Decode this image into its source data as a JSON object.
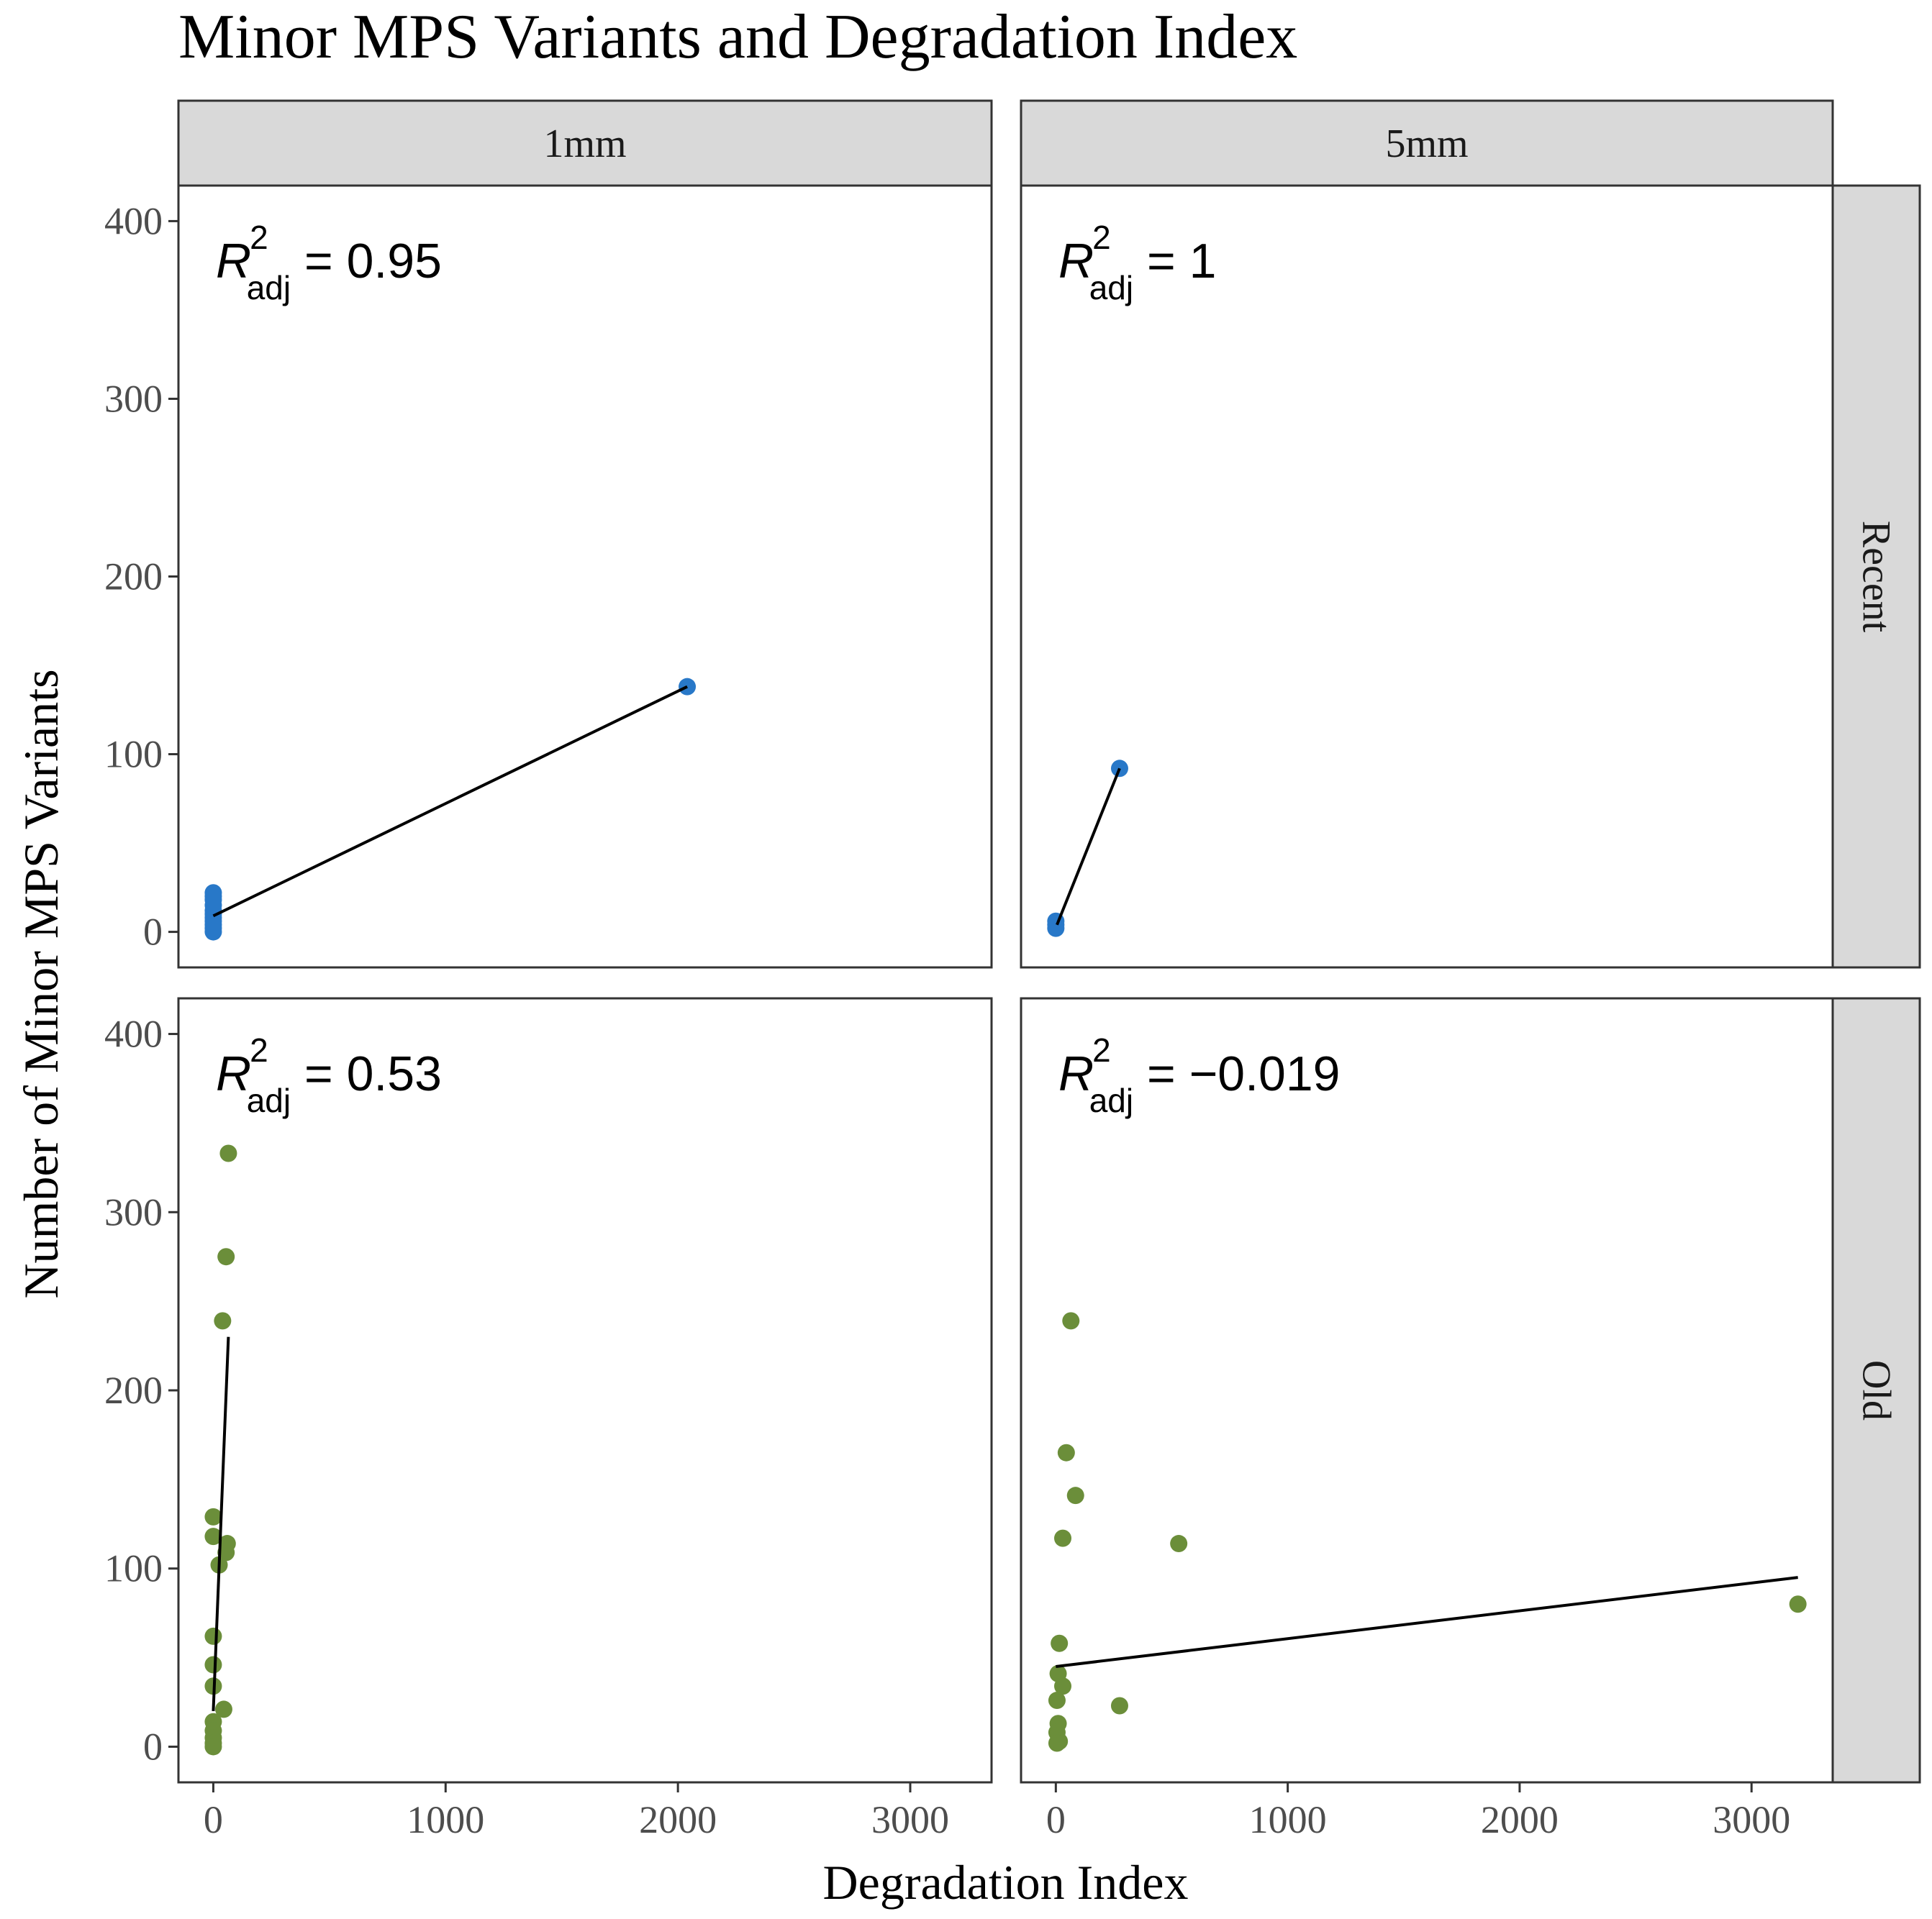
{
  "chart_data": {
    "type": "scatter",
    "title": "Minor MPS Variants and Degradation Index",
    "xlabel": "Degradation Index",
    "ylabel": "Number of Minor MPS Variants",
    "xlim": [
      -150,
      3350
    ],
    "ylim": [
      -20,
      420
    ],
    "x_ticks": [
      0,
      1000,
      2000,
      3000
    ],
    "x_tick_labels": [
      "0",
      "1000",
      "2000",
      "3000"
    ],
    "y_ticks": [
      0,
      100,
      200,
      300,
      400
    ],
    "y_tick_labels": [
      "0",
      "100",
      "200",
      "300",
      "400"
    ],
    "grid": false,
    "column_strips": [
      "1mm",
      "5mm"
    ],
    "row_strips": [
      "Recent",
      "Old"
    ],
    "colors": {
      "Recent": "#2878c8",
      "Old": "#6b8e3a",
      "fit_line": "#000000",
      "strip_bg": "#d9d9d9",
      "panel_border": "#333333"
    },
    "panels": [
      {
        "column": "1mm",
        "row": "Recent",
        "r2_label": "R",
        "r2_sup": "2",
        "r2_sub": "adj",
        "r2_value": " = 0.95",
        "points": [
          [
            0,
            0
          ],
          [
            0,
            2
          ],
          [
            0,
            4
          ],
          [
            0,
            6
          ],
          [
            0,
            8
          ],
          [
            0,
            10
          ],
          [
            0,
            12
          ],
          [
            0,
            15
          ],
          [
            0,
            18
          ],
          [
            0,
            20
          ],
          [
            0,
            22
          ],
          [
            2040,
            138
          ]
        ],
        "fit": [
          [
            0,
            9
          ],
          [
            2040,
            138
          ]
        ]
      },
      {
        "column": "5mm",
        "row": "Recent",
        "r2_label": "R",
        "r2_sup": "2",
        "r2_sub": "adj",
        "r2_value": " = 1",
        "points": [
          [
            0,
            2
          ],
          [
            0,
            4
          ],
          [
            0,
            6
          ],
          [
            275,
            92
          ]
        ],
        "fit": [
          [
            5,
            4
          ],
          [
            275,
            92
          ]
        ]
      },
      {
        "column": "1mm",
        "row": "Old",
        "r2_label": "R",
        "r2_sup": "2",
        "r2_sub": "adj",
        "r2_value": " = 0.53",
        "points": [
          [
            65,
            333
          ],
          [
            55,
            275
          ],
          [
            40,
            239
          ],
          [
            0,
            129
          ],
          [
            0,
            118
          ],
          [
            60,
            114
          ],
          [
            55,
            109
          ],
          [
            25,
            102
          ],
          [
            0,
            62
          ],
          [
            0,
            46
          ],
          [
            0,
            34
          ],
          [
            45,
            21
          ],
          [
            0,
            14
          ],
          [
            0,
            9
          ],
          [
            0,
            5
          ],
          [
            0,
            2
          ],
          [
            0,
            0
          ]
        ],
        "fit": [
          [
            0,
            20
          ],
          [
            65,
            230
          ]
        ]
      },
      {
        "column": "5mm",
        "row": "Old",
        "r2_label": "R",
        "r2_sup": "2",
        "r2_sub": "adj",
        "r2_value": " = −0.019",
        "points": [
          [
            65,
            239
          ],
          [
            45,
            165
          ],
          [
            85,
            141
          ],
          [
            30,
            117
          ],
          [
            530,
            114
          ],
          [
            3200,
            80
          ],
          [
            15,
            58
          ],
          [
            10,
            41
          ],
          [
            30,
            34
          ],
          [
            5,
            26
          ],
          [
            275,
            23
          ],
          [
            10,
            13
          ],
          [
            5,
            8
          ],
          [
            15,
            3
          ],
          [
            5,
            2
          ]
        ],
        "fit": [
          [
            0,
            45
          ],
          [
            3200,
            95
          ]
        ]
      }
    ]
  }
}
